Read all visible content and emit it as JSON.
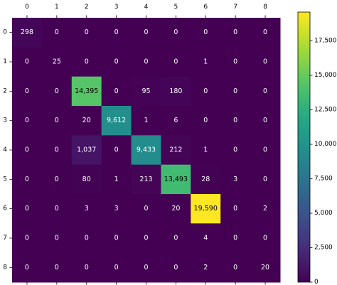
{
  "chart_data": {
    "type": "heatmap",
    "title": "",
    "xlabel": "",
    "ylabel": "",
    "x_tick_labels": [
      "0",
      "1",
      "2",
      "3",
      "4",
      "5",
      "6",
      "7",
      "8"
    ],
    "y_tick_labels": [
      "0",
      "1",
      "2",
      "3",
      "4",
      "5",
      "6",
      "7",
      "8"
    ],
    "x_axis_position": "top",
    "values": [
      [
        298,
        0,
        0,
        0,
        0,
        0,
        0,
        0,
        0
      ],
      [
        0,
        25,
        0,
        0,
        0,
        0,
        1,
        0,
        0
      ],
      [
        0,
        0,
        14395,
        0,
        95,
        180,
        0,
        0,
        0
      ],
      [
        0,
        0,
        20,
        9612,
        1,
        6,
        0,
        0,
        0
      ],
      [
        0,
        0,
        1037,
        0,
        9433,
        212,
        1,
        0,
        0
      ],
      [
        0,
        0,
        80,
        1,
        213,
        13493,
        28,
        3,
        0
      ],
      [
        0,
        0,
        3,
        3,
        0,
        20,
        19590,
        0,
        2
      ],
      [
        0,
        0,
        0,
        0,
        0,
        0,
        4,
        0,
        0
      ],
      [
        0,
        0,
        0,
        0,
        0,
        0,
        2,
        0,
        20
      ]
    ],
    "colormap": "viridis",
    "colorbar": {
      "range": [
        0,
        19590
      ],
      "ticks": [
        0,
        2500,
        5000,
        7500,
        10000,
        12500,
        15000,
        17500
      ],
      "tick_labels": [
        "0",
        "2,500",
        "5,000",
        "7,500",
        "10,000",
        "12,500",
        "15,000",
        "17,500"
      ],
      "position": "right"
    },
    "grid": false
  }
}
